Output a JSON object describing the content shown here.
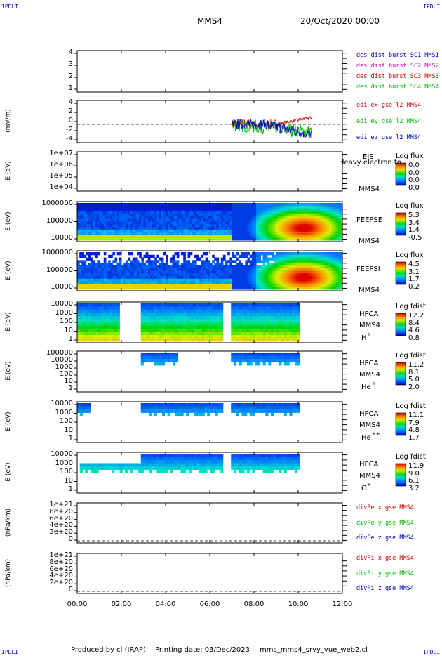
{
  "corners": {
    "tl": "IPDLI",
    "tr": "IPDLI",
    "bl": "IPDLI",
    "br": "IPDLI"
  },
  "header": {
    "mission": "MMS4",
    "date": "20/Oct/2020 00:00"
  },
  "chart_data": {
    "type": "line",
    "x_ticks": [
      "00:00",
      "02:00",
      "04:00",
      "06:00",
      "08:00",
      "10:00",
      "12:00"
    ],
    "xlim_hours": [
      0,
      12
    ],
    "panels": [
      {
        "id": "p1",
        "ylabel": "",
        "yticks": [
          "4",
          "3",
          "2",
          "1"
        ],
        "legend": [
          {
            "text": "des dist burst SC1 MMS1",
            "color": "#0000cc"
          },
          {
            "text": "des dist burst SC2 MMS2",
            "color": "#cc00cc"
          },
          {
            "text": "des dist burst SC3 MMS3",
            "color": "#cc0000"
          },
          {
            "text": "des dist burst SC4 MMS4",
            "color": "#00bb00"
          }
        ]
      },
      {
        "id": "p2",
        "ylabel": "(mV/m)",
        "yticks": [
          "4",
          "2",
          "0",
          "-2",
          "-4"
        ],
        "legend": [
          {
            "text": "edi ex gse l2 MMS4",
            "color": "#cc0000"
          },
          {
            "text": "edi ey gse l2 MMS4",
            "color": "#00bb00"
          },
          {
            "text": "edi ez gse l2 MMS4",
            "color": "#0000cc"
          }
        ]
      },
      {
        "id": "p3",
        "ylabel": "E (eV)",
        "yticks": [
          "1e+07",
          "1e+06",
          "1e+05",
          "1e+04"
        ],
        "inst": [
          "EIS",
          "Heavy electron to",
          "MMS4"
        ],
        "cb_title": "Log flux",
        "cb_vals": [
          "0.0",
          "0.0",
          "0.0",
          "0.0"
        ]
      },
      {
        "id": "p4",
        "ylabel": "E (eV)",
        "yticks": [
          "1000000",
          "100000",
          "10000"
        ],
        "inst": [
          "FEEPSE",
          "MMS4"
        ],
        "cb_title": "Log flux",
        "cb_vals": [
          "5.3",
          "3.4",
          "1.4",
          "-0.5"
        ]
      },
      {
        "id": "p5",
        "ylabel": "E (eV)",
        "yticks": [
          "1000000",
          "100000",
          "10000"
        ],
        "inst": [
          "FEEPSI",
          "MMS4"
        ],
        "cb_title": "Log flux",
        "cb_vals": [
          "4.5",
          "3.1",
          "1.7",
          "0.2"
        ]
      },
      {
        "id": "p6",
        "ylabel": "E (eV)",
        "yticks": [
          "10000",
          "1000",
          "100",
          "10",
          "1"
        ],
        "inst": [
          "HPCA",
          "MMS4",
          "H",
          "+"
        ],
        "cb_title": "Log fdist",
        "cb_vals": [
          "12.2",
          "8.4",
          "4.6",
          "0.8"
        ]
      },
      {
        "id": "p7",
        "ylabel": "E (eV)",
        "yticks": [
          "100000",
          "10000",
          "1000",
          "100",
          "10",
          "1"
        ],
        "inst": [
          "HPCA",
          "MMS4",
          "He",
          "+"
        ],
        "cb_title": "Log fdist",
        "cb_vals": [
          "11.2",
          "8.1",
          "5.0",
          "2.0"
        ]
      },
      {
        "id": "p8",
        "ylabel": "E (eV)",
        "yticks": [
          "10000",
          "1000",
          "100",
          "10",
          "1"
        ],
        "inst": [
          "HPCA",
          "MMS4",
          "He",
          "++"
        ],
        "cb_title": "Log fdist",
        "cb_vals": [
          "11.1",
          "7.9",
          "4.8",
          "1.7"
        ]
      },
      {
        "id": "p9",
        "ylabel": "E (eV)",
        "yticks": [
          "10000",
          "1000",
          "100",
          "10",
          "1"
        ],
        "inst": [
          "HPCA",
          "MMS4",
          "O",
          "+"
        ],
        "cb_title": "Log fdist",
        "cb_vals": [
          "11.9",
          "9.0",
          "6.1",
          "3.2"
        ]
      },
      {
        "id": "p10",
        "ylabel": "(nPa/km)",
        "yticks": [
          "1e+21",
          "8e+20",
          "6e+20",
          "4e+20",
          "2e+20",
          "0"
        ],
        "legend": [
          {
            "text": "divPe x gse MMS4",
            "color": "#cc0000"
          },
          {
            "text": "divPe y gse MMS4",
            "color": "#00bb00"
          },
          {
            "text": "divPe z gse MMS4",
            "color": "#0000cc"
          }
        ]
      },
      {
        "id": "p11",
        "ylabel": "(nPa/km)",
        "yticks": [
          "1e+21",
          "8e+20",
          "6e+20",
          "4e+20",
          "2e+20",
          "0"
        ],
        "legend": [
          {
            "text": "divPi x gse MMS4",
            "color": "#cc0000"
          },
          {
            "text": "divPi y gse MMS4",
            "color": "#00bb00"
          },
          {
            "text": "divPi z gse MMS4",
            "color": "#0000cc"
          }
        ]
      }
    ]
  },
  "footer": {
    "producer": "Produced by cl (IRAP)",
    "printing": "Printing date: 03/Dec/2023",
    "file": "mms_mms4_srvy_vue_web2.cl"
  }
}
